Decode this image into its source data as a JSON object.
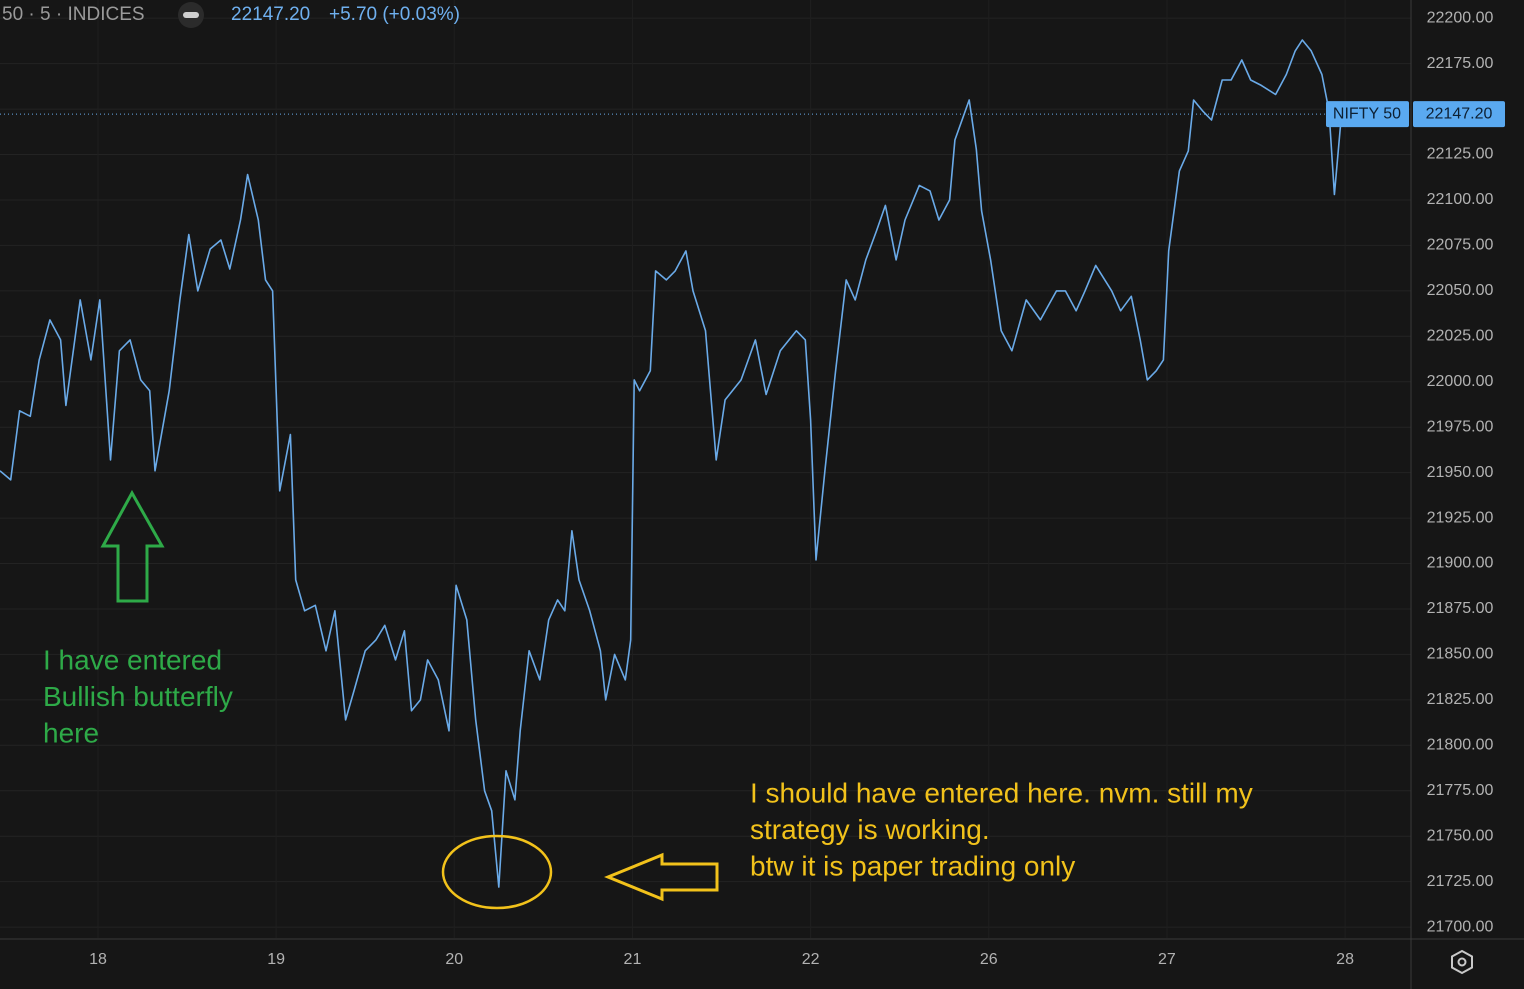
{
  "header": {
    "symbol": "50 · 5 · INDICES",
    "price": "22147.20",
    "change": "+5.70 (+0.03%)"
  },
  "chart_data": {
    "type": "line",
    "last_price": {
      "value": 22147.2,
      "label": "22147.20"
    },
    "annotations": {
      "entered": [
        "I have entered",
        "Bullish butterfly",
        "here"
      ],
      "should_have": [
        "I should have entered here. nvm. still my",
        "strategy is working.",
        "btw it is paper trading only"
      ]
    },
    "xlim": [
      -0.55,
      7.37
    ],
    "xticks": [
      {
        "value": 0,
        "label": "18"
      },
      {
        "value": 1,
        "label": "19"
      },
      {
        "value": 2,
        "label": "20"
      },
      {
        "value": 3,
        "label": "21"
      },
      {
        "value": 4,
        "label": "22"
      },
      {
        "value": 5,
        "label": "26"
      },
      {
        "value": 6,
        "label": "27"
      },
      {
        "value": 7,
        "label": "28"
      }
    ],
    "ylim": [
      21694,
      22210
    ],
    "yticks": [
      {
        "value": 21700,
        "label": "21700.00"
      },
      {
        "value": 21725,
        "label": "21725.00"
      },
      {
        "value": 21750,
        "label": "21750.00"
      },
      {
        "value": 21775,
        "label": "21775.00"
      },
      {
        "value": 21800,
        "label": "21800.00"
      },
      {
        "value": 21825,
        "label": "21825.00"
      },
      {
        "value": 21850,
        "label": "21850.00"
      },
      {
        "value": 21875,
        "label": "21875.00"
      },
      {
        "value": 21900,
        "label": "21900.00"
      },
      {
        "value": 21925,
        "label": "21925.00"
      },
      {
        "value": 21950,
        "label": "21950.00"
      },
      {
        "value": 21975,
        "label": "21975.00"
      },
      {
        "value": 22000,
        "label": "22000.00"
      },
      {
        "value": 22025,
        "label": "22025.00"
      },
      {
        "value": 22050,
        "label": "22050.00"
      },
      {
        "value": 22075,
        "label": "22075.00"
      },
      {
        "value": 22100,
        "label": "22100.00"
      },
      {
        "value": 22125,
        "label": "22125.00"
      },
      {
        "value": 22150,
        "label": "22150.00"
      },
      {
        "value": 22175,
        "label": "22175.00"
      },
      {
        "value": 22200,
        "label": "22200.00"
      }
    ],
    "grid": true,
    "x": [
      -0.55,
      -0.49,
      -0.44,
      -0.38,
      -0.33,
      -0.27,
      -0.21,
      -0.18,
      -0.1,
      -0.04,
      0.01,
      0.07,
      0.12,
      0.18,
      0.24,
      0.29,
      0.32,
      0.4,
      0.46,
      0.51,
      0.56,
      0.63,
      0.69,
      0.74,
      0.8,
      0.84,
      0.9,
      0.94,
      0.98,
      1.02,
      1.08,
      1.11,
      1.16,
      1.22,
      1.28,
      1.33,
      1.39,
      1.44,
      1.5,
      1.56,
      1.61,
      1.67,
      1.72,
      1.76,
      1.81,
      1.85,
      1.91,
      1.97,
      2.01,
      2.07,
      2.12,
      2.17,
      2.21,
      2.25,
      2.29,
      2.34,
      2.37,
      2.42,
      2.48,
      2.53,
      2.58,
      2.62,
      2.66,
      2.7,
      2.76,
      2.82,
      2.85,
      2.9,
      2.96,
      2.99,
      3.01,
      3.04,
      3.1,
      3.13,
      3.19,
      3.24,
      3.3,
      3.34,
      3.41,
      3.47,
      3.52,
      3.61,
      3.69,
      3.75,
      3.83,
      3.92,
      3.97,
      4.0,
      4.03,
      4.08,
      4.14,
      4.2,
      4.25,
      4.31,
      4.37,
      4.42,
      4.48,
      4.53,
      4.61,
      4.67,
      4.72,
      4.78,
      4.81,
      4.89,
      4.93,
      4.96,
      5.01,
      5.07,
      5.13,
      5.21,
      5.29,
      5.38,
      5.43,
      5.49,
      5.54,
      5.6,
      5.69,
      5.74,
      5.8,
      5.85,
      5.89,
      5.94,
      5.98,
      6.01,
      6.07,
      6.12,
      6.15,
      6.2,
      6.25,
      6.31,
      6.36,
      6.42,
      6.47,
      6.53,
      6.61,
      6.67,
      6.72,
      6.76,
      6.81,
      6.87,
      6.91,
      6.94,
      6.98
    ],
    "series": [
      {
        "name": "NIFTY 50",
        "color": "#6aaae8",
        "values": [
          21951,
          21946,
          21984,
          21981,
          22012,
          22034,
          22023,
          21987,
          22045,
          22012,
          22045,
          21957,
          22017,
          22023,
          22001,
          21995,
          21951,
          21995,
          22045,
          22081,
          22050,
          22073,
          22078,
          22062,
          22089,
          22114,
          22089,
          22056,
          22050,
          21940,
          21971,
          21891,
          21874,
          21877,
          21852,
          21874,
          21814,
          21831,
          21852,
          21858,
          21866,
          21847,
          21863,
          21819,
          21825,
          21847,
          21836,
          21808,
          21888,
          21869,
          21814,
          21775,
          21764,
          21722,
          21786,
          21770,
          21808,
          21852,
          21836,
          21869,
          21880,
          21874,
          21918,
          21891,
          21874,
          21852,
          21825,
          21850,
          21836,
          21858,
          22001,
          21995,
          22006,
          22061,
          22056,
          22061,
          22072,
          22050,
          22028,
          21957,
          21990,
          22001,
          22023,
          21993,
          22017,
          22028,
          22023,
          21979,
          21902,
          21951,
          22006,
          22056,
          22045,
          22067,
          22083,
          22097,
          22067,
          22089,
          22108,
          22105,
          22089,
          22100,
          22133,
          22155,
          22128,
          22094,
          22067,
          22028,
          22017,
          22045,
          22034,
          22050,
          22050,
          22039,
          22050,
          22064,
          22050,
          22039,
          22047,
          22023,
          22001,
          22006,
          22012,
          22072,
          22116,
          22127,
          22155,
          22149,
          22144,
          22166,
          22166,
          22177,
          22166,
          22163,
          22158,
          22169,
          22182,
          22188,
          22182,
          22169,
          22149,
          22103,
          22147.2
        ]
      }
    ]
  }
}
